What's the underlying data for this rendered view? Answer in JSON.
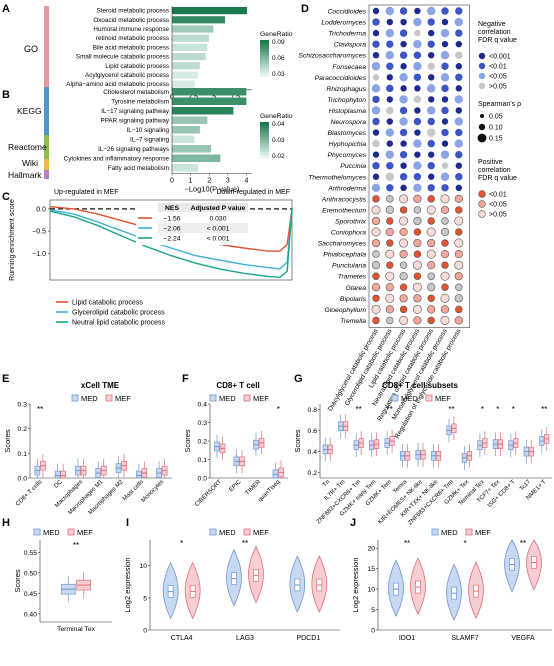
{
  "panels": {
    "A": "A",
    "B": "B",
    "C": "C",
    "D": "D",
    "E": "E",
    "F": "F",
    "G": "G",
    "H": "H",
    "I": "I",
    "J": "J"
  },
  "colors": {
    "med": "#6f97d4",
    "mef": "#e0707a",
    "gradient_low": "#e3f4ee",
    "gradient_high": "#1a7a4e",
    "go_tag": "#e69aa0",
    "kegg_tag": "#4a98d2",
    "reactome_tag": "#8cc04a",
    "wiki_tag": "#f2b547",
    "hallmark_tag": "#b27ec8",
    "lipid": "#e4532f",
    "glycerolipid": "#40b0d8",
    "neutral": "#1aa58e"
  },
  "chart_data": [
    {
      "id": "A",
      "type": "bar",
      "group_label": "GO",
      "categories": [
        "Steroid metabolic process",
        "Oxoacid metabolic process",
        "Humoral immune response",
        "retinoid metabolic process",
        "Bile acid metabolic process",
        "Small molecule catabolic process",
        "Lipid catabolic process",
        "Acylglycerol catabolic process",
        "Alpha−amino acid metabolic process"
      ],
      "values": [
        8.9,
        6.3,
        4.9,
        4.4,
        4.2,
        4.0,
        3.3,
        3.1,
        2.7
      ],
      "gene_ratio": [
        0.1,
        0.09,
        0.05,
        0.04,
        0.035,
        0.04,
        0.04,
        0.03,
        0.03
      ],
      "xlim": [
        0,
        9.5
      ],
      "xticks": [
        "0",
        "2.5",
        "5",
        "7.5"
      ],
      "legend_title": "GeneRatio",
      "legend_ticks": [
        "0.09",
        "0.06",
        "0.03"
      ]
    },
    {
      "id": "B",
      "type": "bar",
      "groups": [
        "KEGG",
        "Reactome",
        "Wiki",
        "Hallmark"
      ],
      "categories": [
        "Cholesterol metabolism",
        "Tyrosine metabolism",
        "IL−17 signaling pathway",
        "PPAR signaling pathway",
        "IL−10 signaling",
        "IL−7 signaling",
        "IL−26 signaling pathways",
        "Cytokines and inflammatory response",
        "Fatty acid metabolism"
      ],
      "values": [
        4.0,
        4.0,
        3.3,
        1.9,
        1.5,
        1.2,
        2.1,
        2.6,
        1.4
      ],
      "gene_ratio": [
        0.048,
        0.048,
        0.052,
        0.03,
        0.03,
        0.02,
        0.03,
        0.035,
        0.02
      ],
      "xlim": [
        0,
        4.3
      ],
      "xticks": [
        "0",
        "1",
        "2",
        "3",
        "4"
      ],
      "xlabel": "−Log10(P value)",
      "legend_title": "GeneRatio",
      "legend_ticks": [
        "0.04",
        "0.03",
        "0.02"
      ]
    },
    {
      "id": "C",
      "type": "line",
      "label_up": "Up-regulated in MEF",
      "label_down": "Down-regulated in MEF",
      "ylabel": "Running enrichment score",
      "yticks": [
        "0.0",
        "−0.5",
        "−1.0"
      ],
      "table": {
        "headers": [
          "NES",
          "Adjusted P value"
        ],
        "rows": [
          [
            "−1.56",
            "0.030"
          ],
          [
            "−2.06",
            "< 0.001"
          ],
          [
            "−2.24",
            "< 0.001"
          ]
        ]
      },
      "series": [
        {
          "name": "Lipid catabolic process",
          "x": [
            0,
            0.1,
            0.2,
            0.3,
            0.4,
            0.5,
            0.6,
            0.7,
            0.8,
            0.9,
            0.95,
            0.98,
            1
          ],
          "y": [
            0.05,
            0.0,
            -0.12,
            -0.27,
            -0.42,
            -0.56,
            -0.68,
            -0.8,
            -0.88,
            -0.95,
            -0.95,
            -0.8,
            0
          ]
        },
        {
          "name": "Glycerolipid catabolic process",
          "x": [
            0,
            0.1,
            0.2,
            0.3,
            0.4,
            0.5,
            0.6,
            0.7,
            0.8,
            0.9,
            0.95,
            0.98,
            1
          ],
          "y": [
            -0.02,
            -0.12,
            -0.3,
            -0.5,
            -0.7,
            -0.88,
            -1.05,
            -1.15,
            -1.25,
            -1.32,
            -1.35,
            -1.2,
            0
          ]
        },
        {
          "name": "Neutral lipid catabolic process",
          "x": [
            0,
            0.1,
            0.2,
            0.3,
            0.4,
            0.5,
            0.6,
            0.7,
            0.8,
            0.9,
            0.95,
            0.98,
            1
          ],
          "y": [
            -0.05,
            -0.18,
            -0.38,
            -0.62,
            -0.85,
            -1.05,
            -1.22,
            -1.35,
            -1.45,
            -1.52,
            -1.54,
            -1.4,
            0
          ]
        }
      ]
    },
    {
      "id": "D",
      "type": "scatter",
      "rows": [
        "Coccidioides",
        "Lodderomyces",
        "Trichoderma",
        "Clavispora",
        "Schizosaccharomyces",
        "Fonsecaea",
        "Paracoccidioides",
        "Rhizophagus",
        "Trichophyton",
        "Histoplasma",
        "Neurospora",
        "Blastomyces",
        "Hyphopichia",
        "Phycomyces",
        "Puccinia",
        "Thermothelomyces",
        "Arthroderma",
        "Anthracocystis",
        "Eremothecium",
        "Sporothrix",
        "Coniophora",
        "Saccharomyces",
        "Phialocephala",
        "Punctularia",
        "Trametes",
        "Glarea",
        "Bipolaris",
        "Gloeophyllum",
        "Tremella"
      ],
      "columns": [
        "Diacylglycerol catabolic process",
        "Glycerolipid catabolic process",
        "Lipid catabolic process",
        "Neutral lipid catabolic process",
        "Regulation of lipid catabolic process",
        "Monoacylglycerol catabolic process",
        "Regulation of triglyceride catabolic process"
      ],
      "legend_neg_title": [
        "Negative",
        "correlation",
        "FDR q value"
      ],
      "legend_neg": [
        "<0.001",
        "<0.01",
        "<0.05",
        ">0.05"
      ],
      "legend_size_title": "Spearman's ρ",
      "legend_size": [
        "0.05",
        "0.10",
        "0.15"
      ],
      "legend_pos_title": [
        "Positive",
        "correlation",
        "FDR q value"
      ],
      "legend_pos": [
        "<0.01",
        "<0.05",
        ">0.05"
      ]
    },
    {
      "id": "E",
      "type": "box",
      "title": "xCell TME",
      "ylabel": "Scores",
      "legend": [
        "MED",
        "MEF"
      ],
      "categories": [
        "CD8+ T cells",
        "DC",
        "Macrophages",
        "Macrophages M1",
        "Macrophages M2",
        "Mast cells",
        "Monocytes"
      ],
      "yticks": [
        "0.0",
        "0.1",
        "0.2",
        "0.3"
      ],
      "ylim": [
        0,
        0.3
      ],
      "med_median": [
        0.03,
        0.01,
        0.03,
        0.02,
        0.04,
        0.01,
        0.02
      ],
      "mef_median": [
        0.05,
        0.01,
        0.03,
        0.03,
        0.05,
        0.02,
        0.03
      ],
      "significance": [
        "**",
        "",
        "",
        "",
        "",
        "",
        ""
      ]
    },
    {
      "id": "F",
      "type": "box",
      "title": "CD8+ T cell",
      "ylabel": "Scores",
      "legend": [
        "MED",
        "MEF"
      ],
      "categories": [
        "CIBERSORT",
        "EPIC",
        "TIMER",
        "quanTIseq"
      ],
      "yticks": [
        "0.0",
        "0.1",
        "0.2",
        "0.3",
        "0.4"
      ],
      "ylim": [
        0,
        0.4
      ],
      "med_median": [
        0.17,
        0.09,
        0.18,
        0.02
      ],
      "mef_median": [
        0.16,
        0.09,
        0.19,
        0.03
      ],
      "significance": [
        "",
        "",
        "",
        "*"
      ]
    },
    {
      "id": "G",
      "type": "box",
      "title": "CD8+ T cell subsets",
      "ylabel": "Scores",
      "legend": [
        "MED",
        "MEF"
      ],
      "categories": [
        "Tn",
        "IL7R+ Tm",
        "ZNF683+CXCR6+ Tm",
        "GZMK+ early Tem",
        "GZMK+ Tem",
        "Temra",
        "KIR+EOMES+ NK-like",
        "KIR+TXK+ NK-like",
        "ZNF683+CXCR6+ Trm",
        "GZMK+ Tex",
        "Terminal Tex",
        "TCF7+ Tex",
        "ISG+ CD8+ T",
        "Tc17",
        "NME1+ T"
      ],
      "yticks": [
        "0.2",
        "0.4",
        "0.6",
        "0.8"
      ],
      "ylim": [
        0.15,
        0.85
      ],
      "med_median": [
        0.42,
        0.64,
        0.46,
        0.46,
        0.48,
        0.36,
        0.37,
        0.36,
        0.6,
        0.34,
        0.46,
        0.47,
        0.46,
        0.4,
        0.5
      ],
      "mef_median": [
        0.42,
        0.64,
        0.48,
        0.47,
        0.5,
        0.36,
        0.37,
        0.36,
        0.62,
        0.36,
        0.48,
        0.47,
        0.48,
        0.4,
        0.52
      ],
      "significance": [
        "",
        "",
        "**",
        "",
        "**",
        "",
        "",
        "",
        "**",
        "",
        "*",
        "*",
        "*",
        "",
        "**"
      ]
    },
    {
      "id": "H",
      "type": "box",
      "ylabel": "Scores",
      "legend": [
        "MED",
        "MEF"
      ],
      "categories": [
        "Terminal Tex"
      ],
      "yticks": [
        "0.40",
        "0.45",
        "0.50",
        "0.55"
      ],
      "ylim": [
        0.38,
        0.58
      ],
      "med_median": [
        0.46
      ],
      "mef_median": [
        0.47
      ],
      "significance": [
        "**"
      ]
    },
    {
      "id": "I",
      "type": "violin",
      "ylabel": "Log2 expression",
      "legend": [
        "MED",
        "MEF"
      ],
      "categories": [
        "CTLA4",
        "LAG3",
        "PDCD1"
      ],
      "yticks": [
        "0",
        "5",
        "10"
      ],
      "ylim": [
        0,
        14
      ],
      "med_median": [
        6,
        8,
        7
      ],
      "mef_median": [
        6,
        8.5,
        7
      ],
      "significance": [
        "*",
        "**",
        ""
      ]
    },
    {
      "id": "J",
      "type": "violin",
      "ylabel": "Log2 expression",
      "legend": [
        "MED",
        "MEF"
      ],
      "categories": [
        "IDO1",
        "SLAMF7",
        "VEGFA"
      ],
      "yticks": [
        "0",
        "5",
        "10",
        "15",
        "20"
      ],
      "ylim": [
        0,
        22
      ],
      "med_median": [
        10,
        9,
        16
      ],
      "mef_median": [
        10.5,
        9.5,
        16.5
      ],
      "significance": [
        "**",
        "*",
        "**"
      ]
    }
  ]
}
